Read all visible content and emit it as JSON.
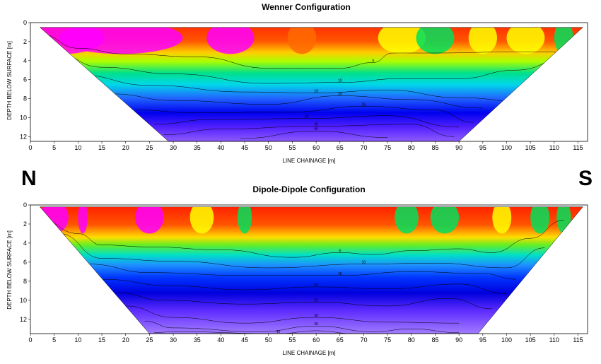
{
  "compass": {
    "left": "N",
    "right": "S"
  },
  "chart_data": [
    {
      "type": "heatmap",
      "title": "Wenner Configuration",
      "xlabel": "LINE CHAINAGE [m]",
      "ylabel": "DEPTH BELOW SURFACE [m]",
      "xlim": [
        0,
        117
      ],
      "ylim": [
        0,
        12.5
      ],
      "y_inverted": true,
      "xticks": [
        0,
        5,
        10,
        15,
        20,
        25,
        30,
        35,
        40,
        45,
        50,
        55,
        60,
        65,
        70,
        75,
        80,
        85,
        90,
        95,
        100,
        105,
        110,
        115
      ],
      "yticks": [
        0,
        2,
        4,
        6,
        8,
        10,
        12
      ],
      "data_extent": {
        "top_depth": 0.5,
        "bottom_depth": 12.5,
        "top_x": [
          2,
          116
        ],
        "bottom_x": [
          29,
          90
        ]
      },
      "contour_levels": [
        {
          "value": 5,
          "label": "5",
          "x": [
            2,
            10,
            20,
            35,
            50,
            65,
            72,
            76,
            85,
            100,
            110,
            116
          ],
          "y": [
            1.2,
            2.7,
            3.3,
            3.6,
            4.8,
            4.8,
            4.2,
            3.2,
            3.2,
            3.1,
            3.1,
            1.5
          ]
        },
        {
          "value": 10,
          "label": "10",
          "x": [
            5,
            15,
            30,
            50,
            65,
            78,
            90,
            102,
            113
          ],
          "y": [
            3.2,
            4.7,
            5.4,
            6.4,
            6.3,
            5.9,
            5.9,
            5.0,
            3.7
          ]
        },
        {
          "value": 15,
          "label": "15",
          "x": [
            10,
            25,
            45,
            60,
            75,
            90,
            105
          ],
          "y": [
            5.5,
            6.6,
            7.3,
            7.4,
            7.1,
            7.9,
            8.4
          ]
        },
        {
          "value": 20,
          "label": "20",
          "x": [
            17,
            30,
            50,
            65,
            80,
            95
          ],
          "y": [
            7.5,
            8.2,
            8.6,
            7.7,
            8.1,
            9.0
          ]
        },
        {
          "value": 25,
          "label": "25",
          "x": [
            22,
            35,
            55,
            70,
            85,
            93
          ],
          "y": [
            9.2,
            9.5,
            9.4,
            8.8,
            9.2,
            10.5
          ]
        },
        {
          "value": 30,
          "label": "30",
          "x": [
            26,
            38,
            58,
            75,
            90
          ],
          "y": [
            10.7,
            10.2,
            10.1,
            9.8,
            11.0
          ]
        },
        {
          "value": 35,
          "label": "35",
          "x": [
            28,
            40,
            60,
            80,
            89
          ],
          "y": [
            11.8,
            11.2,
            10.9,
            10.7,
            12.0
          ]
        },
        {
          "value": 40,
          "label": "40",
          "x": [
            44,
            60,
            75
          ],
          "y": [
            12.2,
            11.4,
            12.1
          ]
        }
      ],
      "color_scale": [
        "#ff00ff",
        "#ff0000",
        "#ff6a00",
        "#ffff00",
        "#00e05a",
        "#00e6e6",
        "#1e6bff",
        "#0000ff",
        "#7b3dff",
        "#a87bff"
      ]
    },
    {
      "type": "heatmap",
      "title": "Dipole-Dipole Configuration",
      "xlabel": "LINE CHAINAGE [m]",
      "ylabel": "DEPTH BELOW SURFACE [m]",
      "xlim": [
        0,
        117
      ],
      "ylim": [
        0,
        13.5
      ],
      "y_inverted": true,
      "xticks": [
        0,
        5,
        10,
        15,
        20,
        25,
        30,
        35,
        40,
        45,
        50,
        55,
        60,
        65,
        70,
        75,
        80,
        85,
        90,
        95,
        100,
        105,
        110,
        115
      ],
      "yticks": [
        0,
        2,
        4,
        6,
        8,
        10,
        12
      ],
      "data_extent": {
        "top_depth": 0.2,
        "bottom_depth": 13.5,
        "top_x": [
          2,
          116
        ],
        "bottom_x": [
          25,
          94
        ]
      },
      "contour_levels": [
        {
          "value": 5,
          "label": "5",
          "x": [
            2,
            10,
            15,
            25,
            40,
            55,
            65,
            72,
            80,
            90,
            97,
            105,
            112
          ],
          "y": [
            1.5,
            3.0,
            4.2,
            4.4,
            4.7,
            5.5,
            5.0,
            5.2,
            4.8,
            4.6,
            5.0,
            3.5,
            1.6
          ]
        },
        {
          "value": 10,
          "label": "10",
          "x": [
            6,
            15,
            30,
            50,
            70,
            85,
            100,
            108
          ],
          "y": [
            3.0,
            5.6,
            5.9,
            6.6,
            6.2,
            6.1,
            6.6,
            4.5
          ]
        },
        {
          "value": 15,
          "label": "15",
          "x": [
            12,
            25,
            45,
            65,
            80,
            95,
            102
          ],
          "y": [
            6.2,
            7.1,
            7.4,
            7.4,
            7.0,
            7.2,
            7.8
          ]
        },
        {
          "value": 20,
          "label": "20",
          "x": [
            15,
            30,
            45,
            60,
            75,
            90,
            100
          ],
          "y": [
            7.8,
            8.5,
            8.9,
            8.6,
            8.8,
            8.3,
            9.3
          ]
        },
        {
          "value": 25,
          "label": "25",
          "x": [
            18,
            28,
            45,
            60,
            75,
            88,
            97
          ],
          "y": [
            9.2,
            10.0,
            10.4,
            10.2,
            10.6,
            9.8,
            10.9
          ]
        },
        {
          "value": 30,
          "label": "30",
          "x": [
            20,
            30,
            45,
            60,
            75,
            90
          ],
          "y": [
            10.6,
            11.8,
            12.4,
            11.8,
            12.3,
            12.4
          ]
        },
        {
          "value": 35,
          "label": "35",
          "x": [
            24,
            30,
            48,
            60,
            72,
            80,
            90
          ],
          "y": [
            12.2,
            12.9,
            13.3,
            12.7,
            13.3,
            13.0,
            13.4
          ]
        },
        {
          "value": 40,
          "label": "40",
          "x": [
            26,
            30,
            52,
            60,
            68
          ],
          "y": [
            13.4,
            13.3,
            13.5,
            13.2,
            13.5
          ]
        }
      ],
      "color_scale": [
        "#ff00ff",
        "#ff0000",
        "#ff6a00",
        "#ffff00",
        "#00e05a",
        "#00e6e6",
        "#1e6bff",
        "#0000ff",
        "#7b3dff",
        "#a87bff"
      ]
    }
  ]
}
